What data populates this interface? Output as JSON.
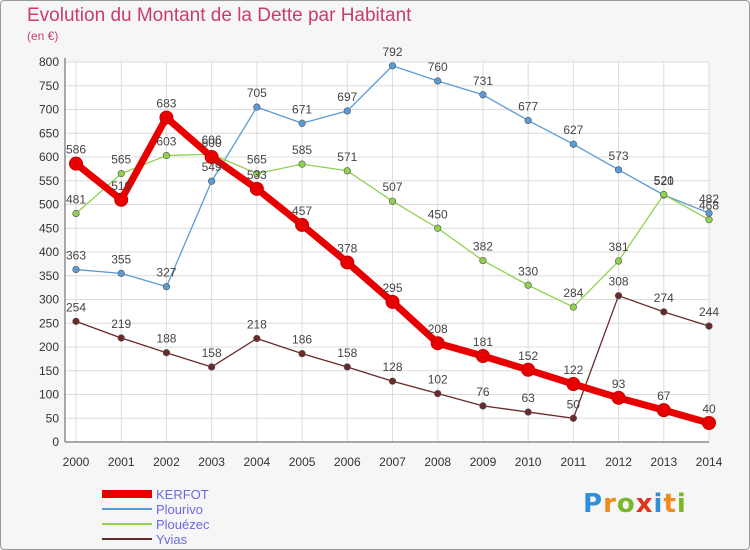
{
  "title": "Evolution du Montant de la Dette par Habitant",
  "subtitle": "(en €)",
  "logo": {
    "text": "Proxiti",
    "colors": [
      "#2f8fd8",
      "#f08a1c",
      "#7ab828",
      "#e0341c",
      "#2f8fd8",
      "#f08a1c",
      "#7ab828"
    ]
  },
  "chart_data": {
    "type": "line",
    "x": [
      "2000",
      "2001",
      "2002",
      "2003",
      "2004",
      "2005",
      "2006",
      "2007",
      "2008",
      "2009",
      "2010",
      "2011",
      "2012",
      "2013",
      "2014"
    ],
    "ylim": [
      0,
      800
    ],
    "yticks": [
      "0",
      "50",
      "100",
      "150",
      "200",
      "250",
      "300",
      "350",
      "400",
      "450",
      "500",
      "550",
      "600",
      "650",
      "700",
      "750",
      "800"
    ],
    "grid": true,
    "legend_position": "bottom-left",
    "series": [
      {
        "name": "KERFOT",
        "color": "#e80000",
        "thick": true,
        "values": [
          586,
          510,
          683,
          600,
          533,
          457,
          378,
          295,
          208,
          181,
          152,
          122,
          93,
          67,
          40
        ],
        "labels": [
          "586",
          "510",
          "683",
          "600",
          "533",
          "457",
          "378",
          "295",
          "208",
          "181",
          "152",
          "122",
          "93",
          "67",
          "40"
        ]
      },
      {
        "name": "Plourivo",
        "color": "#5b9bd5",
        "thick": false,
        "values": [
          363,
          355,
          327,
          549,
          705,
          671,
          697,
          792,
          760,
          731,
          677,
          627,
          573,
          520,
          482
        ],
        "labels": [
          "363",
          "355",
          "327",
          "549",
          "705",
          "671",
          "697",
          "792",
          "760",
          "731",
          "677",
          "627",
          "573",
          "520",
          "482"
        ]
      },
      {
        "name": "Plouézec",
        "color": "#92d050",
        "thick": false,
        "values": [
          481,
          565,
          603,
          606,
          565,
          585,
          571,
          507,
          450,
          382,
          330,
          284,
          381,
          521,
          468
        ],
        "labels": [
          "481",
          "565",
          "603",
          "606",
          "565",
          "585",
          "571",
          "507",
          "450",
          "382",
          "330",
          "284",
          "381",
          "521",
          "468"
        ]
      },
      {
        "name": "Yvias",
        "color": "#6b2a2a",
        "thick": false,
        "values": [
          254,
          219,
          188,
          158,
          218,
          186,
          158,
          128,
          102,
          76,
          63,
          50,
          308,
          274,
          244
        ],
        "labels": [
          "254",
          "219",
          "188",
          "158",
          "218",
          "186",
          "158",
          "128",
          "102",
          "76",
          "63",
          "50",
          "308",
          "274",
          "244"
        ]
      }
    ]
  }
}
